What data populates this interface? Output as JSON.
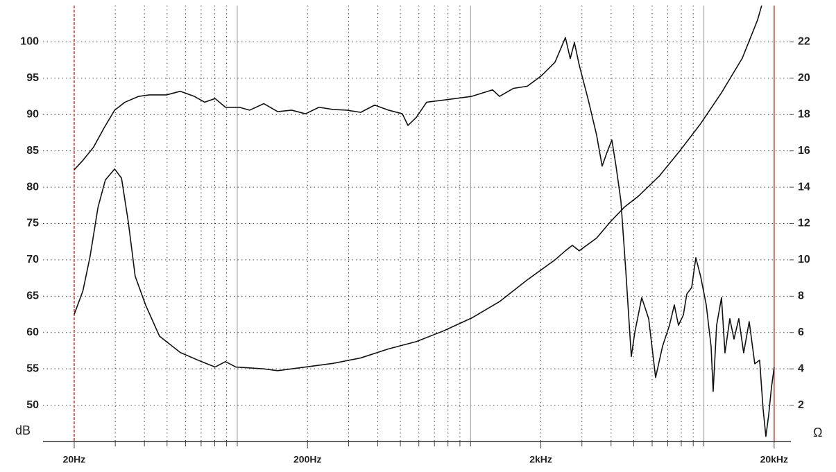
{
  "chart_data": {
    "type": "line",
    "x_label": "",
    "y_label": "dB",
    "y2_label": "Ω",
    "xscale": "log",
    "grid": true,
    "xlim": [
      14.7,
      23600
    ],
    "xticks": [
      {
        "value": 20,
        "label": "20Hz"
      },
      {
        "value": 200,
        "label": "200Hz"
      },
      {
        "value": 2000,
        "label": "2kHz"
      },
      {
        "value": 20000,
        "label": "20kHz"
      }
    ],
    "xgrid": [
      30,
      40,
      50,
      60,
      70,
      80,
      90,
      100,
      300,
      400,
      500,
      600,
      700,
      800,
      900,
      1000,
      3000,
      4000,
      5000,
      6000,
      7000,
      8000,
      9000,
      10000
    ],
    "ylim": [
      45,
      105
    ],
    "yticks": [
      50,
      55,
      60,
      65,
      70,
      75,
      80,
      85,
      90,
      95,
      100
    ],
    "y2lim": [
      0,
      24
    ],
    "y2ticks": [
      2,
      4,
      6,
      8,
      10,
      12,
      14,
      16,
      18,
      20,
      22
    ],
    "series": [
      {
        "color": "#111111",
        "x": [
          20,
          21.8,
          24.2,
          26.9,
          29.8,
          33.0,
          37.8,
          41.9,
          49.7,
          57.0,
          65.4,
          72.5,
          80.3,
          89.0,
          102,
          113,
          130,
          149,
          171,
          196,
          224,
          257,
          295,
          338,
          388,
          445,
          510,
          539,
          585,
          648,
          769,
          1011,
          1242,
          1330,
          1525,
          1750,
          2006,
          2300,
          2549,
          2674,
          2786,
          2922,
          3195,
          3467,
          3663,
          3843,
          4032,
          4201,
          4408,
          4624,
          4885,
          5055,
          5414,
          5799,
          6209,
          6648,
          7120,
          7467,
          7781,
          8163,
          8447,
          8863,
          9234,
          9686,
          10233,
          10735,
          10957,
          11338,
          11896,
          12310,
          12913,
          13456,
          14113,
          14804,
          15638,
          16520,
          17331,
          17935,
          18434,
          18946,
          19472,
          20000
        ],
        "values": [
          82.4,
          83.7,
          85.5,
          88.2,
          90.6,
          91.7,
          92.5,
          92.7,
          92.7,
          93.2,
          92.5,
          91.7,
          92.2,
          91.0,
          91.0,
          90.6,
          91.5,
          90.4,
          90.6,
          90.1,
          91.0,
          90.7,
          90.6,
          90.3,
          91.3,
          90.6,
          90.1,
          88.5,
          89.6,
          91.7,
          92.0,
          92.5,
          93.4,
          92.5,
          93.6,
          93.9,
          95.3,
          97.2,
          100.6,
          97.7,
          99.9,
          96.8,
          92.0,
          87.2,
          82.9,
          84.8,
          86.5,
          82.9,
          78.1,
          68.6,
          56.7,
          60.0,
          64.8,
          61.9,
          53.8,
          58.1,
          61.0,
          63.8,
          61.0,
          62.4,
          65.3,
          66.2,
          70.3,
          67.7,
          63.8,
          58.1,
          51.9,
          61.0,
          64.8,
          57.2,
          61.9,
          59.1,
          61.9,
          57.2,
          61.5,
          55.7,
          56.2,
          49.5,
          45.7,
          48.6,
          52.4,
          55.2
        ]
      },
      {
        "color": "#111111",
        "axis": "y2",
        "x": [
          20,
          21.8,
          23.4,
          25.3,
          27.2,
          29.8,
          31.9,
          34.1,
          36.5,
          40.5,
          46.4,
          57.0,
          70.1,
          80.3,
          89.0,
          98.6,
          130,
          149,
          196,
          257,
          338,
          445,
          585,
          769,
          1011,
          1330,
          1750,
          2300,
          2549,
          2729,
          2922,
          3467,
          3977,
          4560,
          5232,
          6424,
          7887,
          9686,
          11896,
          14604,
          16978,
          17686
        ],
        "values": [
          7.0,
          8.3,
          10.2,
          12.9,
          14.4,
          15.0,
          14.5,
          12.1,
          9.1,
          7.5,
          5.8,
          4.9,
          4.4,
          4.1,
          4.4,
          4.1,
          4.0,
          3.9,
          4.1,
          4.3,
          4.6,
          5.1,
          5.5,
          6.1,
          6.8,
          7.7,
          8.9,
          10.0,
          10.5,
          10.8,
          10.5,
          11.2,
          12.1,
          12.9,
          13.5,
          14.6,
          16.0,
          17.5,
          19.2,
          21.1,
          23.2,
          24.0
        ]
      }
    ]
  }
}
